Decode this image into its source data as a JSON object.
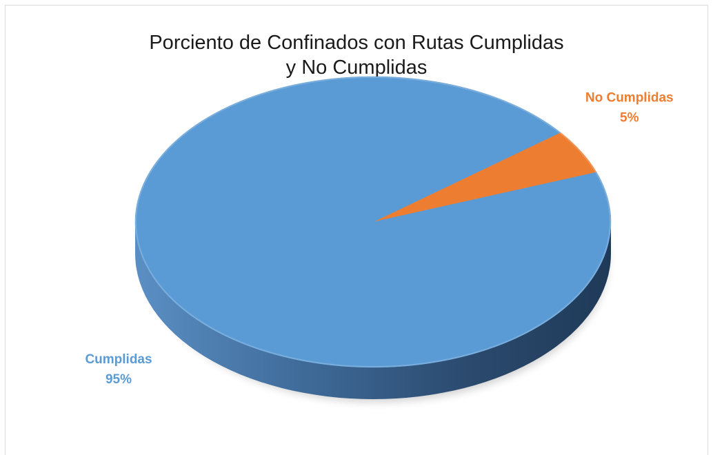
{
  "chart_data": {
    "type": "pie",
    "title": "Porciento de Confinados con Rutas Cumplidas y No Cumplidas",
    "title_lines": [
      "Porciento de Confinados con Rutas Cumplidas",
      "y No Cumplidas"
    ],
    "style": "3d",
    "categories": [
      "Cumplidas",
      "No Cumplidas"
    ],
    "values": [
      95,
      5
    ],
    "value_labels": [
      "95%",
      "5%"
    ],
    "colors": {
      "Cumplidas": "#5b9bd5",
      "No Cumplidas": "#ed7d31"
    },
    "legend": "none",
    "data_labels_outside": true
  }
}
